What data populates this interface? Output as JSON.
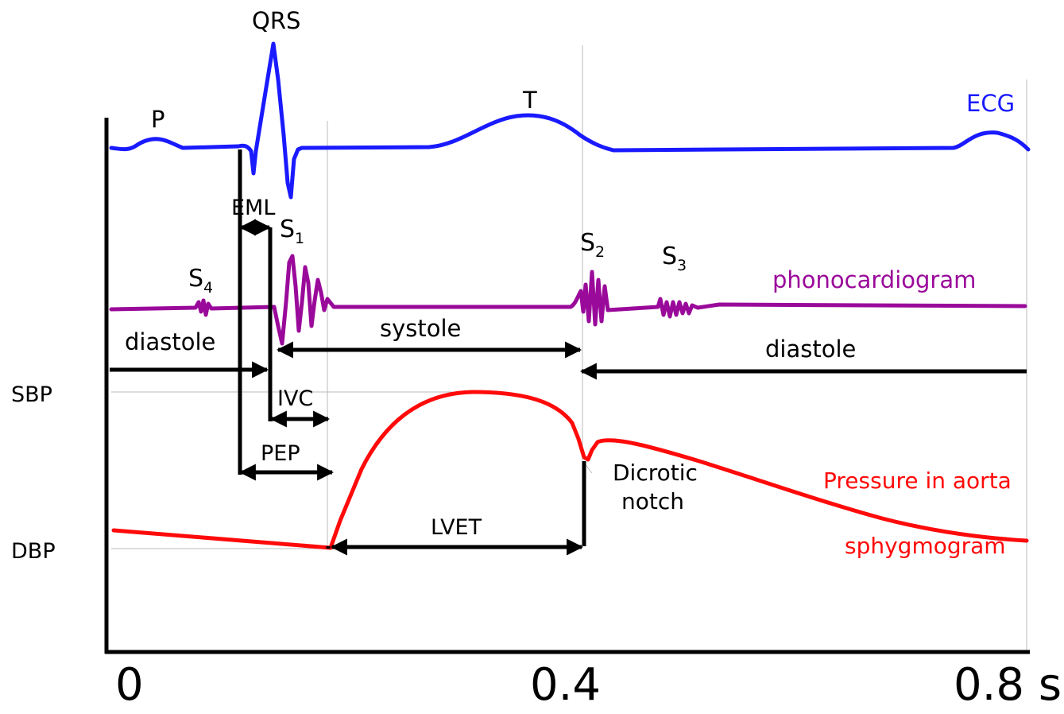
{
  "colors": {
    "ecg": "#1a1aff",
    "phonocardiogram": "#9a0a9a",
    "pressure": "#ff0a0a",
    "arrows": "#000000",
    "guides": "#bbbbbb"
  },
  "axis": {
    "x_ticks": [
      "0",
      "0.4",
      "0.8 s"
    ],
    "y_labels": {
      "sbp": "SBP",
      "dbp": "DBP"
    }
  },
  "ecg": {
    "name": "ECG",
    "waves": {
      "p": "P",
      "qrs": "QRS",
      "t": "T"
    }
  },
  "phono": {
    "name": "phonocardiogram",
    "s1_base": "S",
    "s1_sub": "1",
    "s2_base": "S",
    "s2_sub": "2",
    "s3_base": "S",
    "s3_sub": "3",
    "s4_base": "S",
    "s4_sub": "4"
  },
  "intervals": {
    "eml": "EML",
    "ivc": "IVC",
    "pep": "PEP",
    "lvet": "LVET",
    "systole": "systole",
    "diastole_left": "diastole",
    "diastole_right": "diastole"
  },
  "pressure": {
    "line1": "Pressure in aorta",
    "line2": "sphygmogram",
    "notch_line1": "Dicrotic",
    "notch_line2": "notch"
  }
}
